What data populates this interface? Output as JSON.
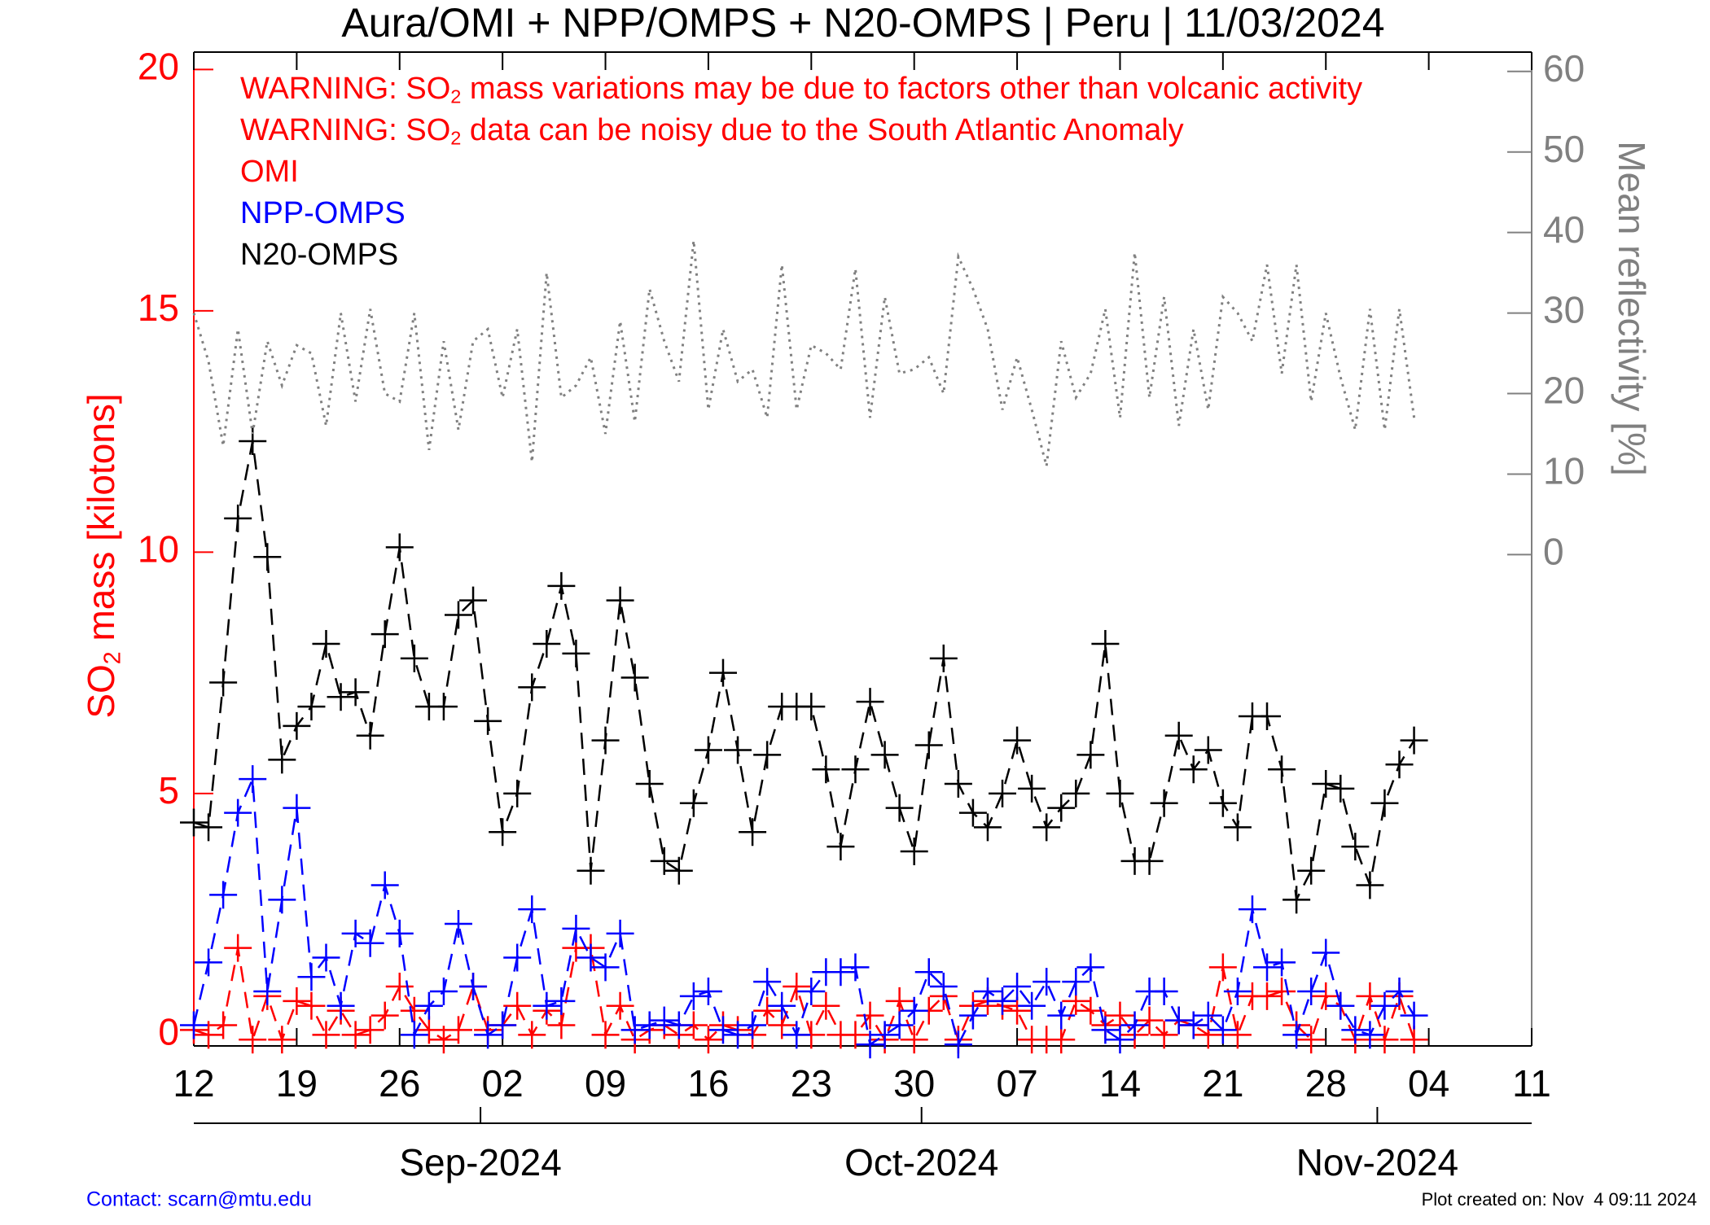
{
  "chart_data": {
    "type": "line",
    "title": "Aura/OMI + NPP/OMPS + N20-OMPS | Peru | 11/03/2024",
    "ylabel": [
      "SO",
      "2",
      " mass [kilotons]"
    ],
    "y2label": "Mean reflectivity [%]",
    "annotations": [
      [
        "WARNING: SO",
        "2",
        " mass variations may be due to factors other than volcanic activity"
      ],
      [
        "WARNING: SO",
        "2",
        " data can be noisy due to the South Atlantic Anomaly"
      ]
    ],
    "contact": "Contact: scarn@mtu.edu",
    "created": "Plot created on: Nov  4 09:11 2024",
    "xlim": [
      0,
      91
    ],
    "xticks": [
      {
        "value": 0,
        "label": "12"
      },
      {
        "value": 7,
        "label": "19"
      },
      {
        "value": 14,
        "label": "26"
      },
      {
        "value": 21,
        "label": "02"
      },
      {
        "value": 28,
        "label": "09"
      },
      {
        "value": 35,
        "label": "16"
      },
      {
        "value": 42,
        "label": "23"
      },
      {
        "value": 49,
        "label": "30"
      },
      {
        "value": 56,
        "label": "07"
      },
      {
        "value": 63,
        "label": "14"
      },
      {
        "value": 70,
        "label": "21"
      },
      {
        "value": 77,
        "label": "28"
      },
      {
        "value": 84,
        "label": "04"
      },
      {
        "value": 91,
        "label": "11"
      }
    ],
    "month_ticks": [
      {
        "value": 19.5,
        "label": "Sep-2024"
      },
      {
        "value": 49.5,
        "label": "Oct-2024"
      },
      {
        "value": 80.5,
        "label": "Nov-2024"
      }
    ],
    "ylim": [
      -0.23,
      20.36
    ],
    "yticks": [
      0,
      5,
      10,
      15,
      20
    ],
    "y2lim": [
      -61,
      62.4
    ],
    "y2ticks": [
      0,
      10,
      20,
      30,
      40,
      50,
      60
    ],
    "x": [
      0,
      1,
      2,
      3,
      4,
      5,
      6,
      7,
      8,
      9,
      10,
      11,
      12,
      13,
      14,
      15,
      16,
      17,
      18,
      19,
      20,
      21,
      22,
      23,
      24,
      25,
      26,
      27,
      28,
      29,
      30,
      31,
      32,
      33,
      34,
      35,
      36,
      37,
      38,
      39,
      40,
      41,
      42,
      43,
      44,
      45,
      46,
      47,
      48,
      49,
      50,
      51,
      52,
      53,
      54,
      55,
      56,
      57,
      58,
      59,
      60,
      61,
      62,
      63,
      64,
      65,
      66,
      67,
      68,
      69,
      70,
      71,
      72,
      73,
      74,
      75,
      76,
      77,
      78,
      79,
      80,
      81,
      82,
      83
    ],
    "series": [
      {
        "name": "OMI",
        "color": "#ff0000",
        "style": "dashed",
        "marker": "+",
        "values": [
          0.1,
          0,
          0.2,
          1.8,
          -0.1,
          0.8,
          -0.1,
          0.7,
          0.6,
          0,
          0.5,
          0,
          0.1,
          0.4,
          1,
          0.5,
          0.1,
          -0.1,
          0.1,
          1,
          0.1,
          0.2,
          0.6,
          0,
          0.5,
          0.2,
          1.8,
          1.8,
          0,
          0.6,
          -0.1,
          0.1,
          0.2,
          0,
          0.2,
          -0.1,
          0.2,
          0.1,
          0,
          0.5,
          0.2,
          1,
          0,
          0.6,
          0,
          0,
          0.4,
          -0.1,
          0.7,
          -0.1,
          0.5,
          0.8,
          -0.1,
          0.6,
          0.7,
          0.6,
          0.5,
          -0.1,
          -0.1,
          -0.1,
          0.7,
          0.5,
          0.2,
          0.4,
          0,
          0.3,
          0,
          0.3,
          0.2,
          0,
          1.4,
          0,
          0.8,
          0.8,
          0.9,
          0.2,
          -0.1,
          0.8,
          0.6,
          -0.1,
          0.8,
          -0.1,
          0.8,
          -0.1
        ]
      },
      {
        "name": "NPP-OMPS",
        "color": "#0000ff",
        "style": "dashed",
        "marker": "+",
        "values": [
          0.2,
          1.5,
          2.9,
          4.6,
          5.3,
          0.9,
          2.8,
          4.7,
          1.2,
          1.6,
          0.6,
          2.1,
          1.9,
          3.1,
          2.1,
          0,
          0.6,
          0.9,
          2.3,
          1,
          0,
          0.2,
          1.6,
          2.6,
          0.6,
          0.7,
          2.2,
          1.6,
          1.4,
          2.1,
          0.1,
          0.2,
          0.3,
          0.2,
          0.8,
          0.9,
          0.1,
          0,
          0.2,
          1.1,
          0.6,
          0,
          0.9,
          1.3,
          1.3,
          1.4,
          -0.2,
          0,
          0.2,
          0.5,
          1.3,
          1,
          -0.2,
          0.4,
          0.9,
          0.7,
          1,
          0.6,
          1.1,
          0.4,
          1.1,
          1.4,
          0.1,
          -0.1,
          0.2,
          0.9,
          0.9,
          0.3,
          0.2,
          0.4,
          0.1,
          0.9,
          2.6,
          1.4,
          1.5,
          0,
          0.9,
          1.7,
          0.6,
          0.1,
          0,
          0.6,
          0.9,
          0.4
        ]
      },
      {
        "name": "N20-OMPS",
        "color": "#000000",
        "style": "dashed",
        "marker": "+",
        "values": [
          4.4,
          4.3,
          7.3,
          10.7,
          12.3,
          9.9,
          5.7,
          6.4,
          6.8,
          8.1,
          7,
          7.1,
          6.2,
          8.3,
          10.1,
          7.8,
          6.8,
          6.8,
          8.7,
          9,
          6.5,
          4.2,
          5,
          7.2,
          8.1,
          9.3,
          7.9,
          3.4,
          6.1,
          9,
          7.4,
          5.2,
          3.6,
          3.4,
          4.8,
          5.9,
          7.5,
          5.9,
          4.2,
          5.8,
          6.8,
          6.8,
          6.8,
          5.5,
          3.9,
          5.5,
          6.9,
          5.8,
          4.7,
          3.8,
          6,
          7.8,
          5.2,
          4.6,
          4.3,
          5,
          6.1,
          5.1,
          4.3,
          4.7,
          5,
          5.8,
          8.1,
          5,
          3.6,
          3.6,
          4.8,
          6.2,
          5.5,
          5.9,
          4.8,
          4.3,
          6.6,
          6.6,
          5.5,
          2.8,
          3.4,
          5.2,
          5.1,
          3.9,
          3.1,
          4.8,
          5.6,
          6.1
        ]
      },
      {
        "color": "#808080",
        "style": "dotted",
        "axis": "y2",
        "values": [
          30,
          24,
          13.5,
          28,
          15,
          26.5,
          21,
          26,
          25,
          16,
          30,
          19,
          30.5,
          20,
          19,
          30,
          13,
          26.5,
          15.5,
          26.5,
          28,
          19.5,
          28,
          11.5,
          35,
          19.5,
          21,
          24.5,
          15,
          29,
          16.5,
          33,
          26.5,
          21.5,
          39,
          18,
          28,
          21.5,
          23,
          17,
          36,
          18,
          26,
          25,
          23,
          35.5,
          17,
          32,
          22.5,
          23,
          24.5,
          20,
          37,
          33,
          28,
          18,
          24.5,
          18,
          11,
          26.5,
          19.5,
          22.5,
          30.5,
          17,
          37.5,
          19.5,
          32,
          16,
          28,
          18,
          32,
          30,
          26.5,
          36,
          22.5,
          36,
          19,
          30,
          22,
          15.5,
          30.5,
          15.5,
          30.5,
          17
        ]
      }
    ],
    "ycolor": "#ff0000",
    "y2color": "#808080"
  }
}
